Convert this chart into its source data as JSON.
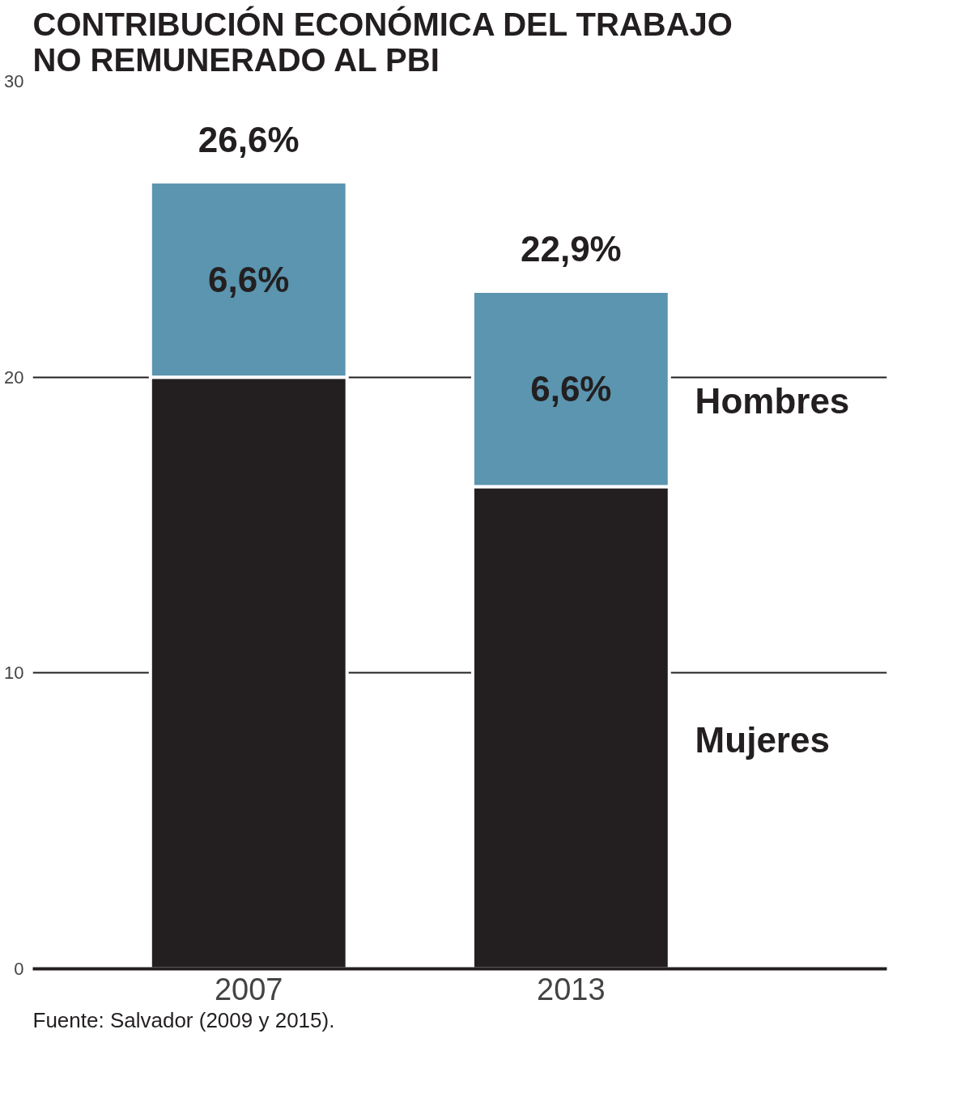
{
  "chart_data": {
    "type": "bar",
    "title": "CONTRIBUCIÓN ECONÓMICA DEL TRABAJO NO REMUNERADO AL PBI",
    "categories": [
      "2007",
      "2013"
    ],
    "stacked": true,
    "series": [
      {
        "name": "Mujeres",
        "color": "#231f20",
        "values": [
          20,
          16.3
        ]
      },
      {
        "name": "Hombres",
        "color": "#5b95af",
        "values": [
          6.6,
          6.6
        ],
        "value_labels": [
          "6,6%",
          "6,6%"
        ]
      }
    ],
    "totals": [
      "26,6%",
      "22,9%"
    ],
    "ylim": [
      0,
      30
    ],
    "yticks": [
      0,
      10,
      20,
      30
    ],
    "grid": "y",
    "annotations": [
      "Fuente: Salvador (2009 y 2015)."
    ]
  }
}
